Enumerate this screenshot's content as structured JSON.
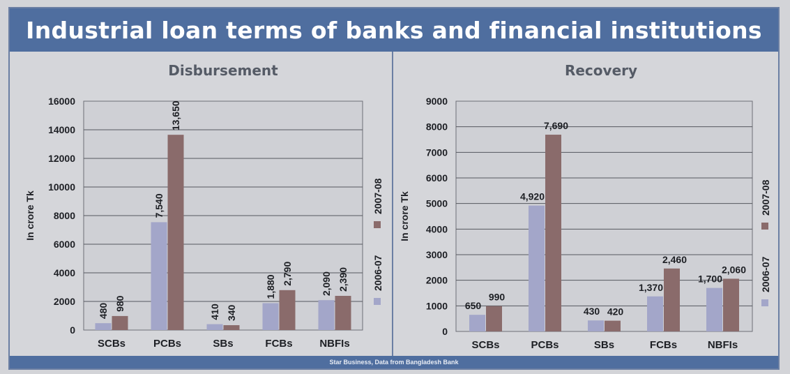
{
  "title": "Industrial loan terms of banks and financial institutions",
  "footer": "Star Business, Data from Bangladesh Bank",
  "colors": {
    "s2006": "#a3a6c9",
    "s2007": "#8a6b6b",
    "title_bg": "#4f6e9f"
  },
  "chart_data": [
    {
      "type": "bar",
      "title": "Disbursement",
      "ylabel": "In crore Tk",
      "categories": [
        "SCBs",
        "PCBs",
        "SBs",
        "FCBs",
        "NBFIs"
      ],
      "ylim": [
        0,
        16000
      ],
      "yticks": [
        "0",
        "2000",
        "4000",
        "6000",
        "8000",
        "10000",
        "12000",
        "14000",
        "16000"
      ],
      "label_orientation": "vertical",
      "legend_position": "right",
      "grid": true,
      "series": [
        {
          "name": "2006-07",
          "values": [
            480,
            7540,
            410,
            1880,
            2090
          ],
          "labels": [
            "480",
            "7,540",
            "410",
            "1,880",
            "2,090"
          ]
        },
        {
          "name": "2007-08",
          "values": [
            980,
            13650,
            340,
            2790,
            2390
          ],
          "labels": [
            "980",
            "13,650",
            "340",
            "2,790",
            "2,390"
          ]
        }
      ]
    },
    {
      "type": "bar",
      "title": "Recovery",
      "ylabel": "In crore Tk",
      "categories": [
        "SCBs",
        "PCBs",
        "SBs",
        "FCBs",
        "NBFIs"
      ],
      "ylim": [
        0,
        9000
      ],
      "yticks": [
        "0",
        "1000",
        "2000",
        "3000",
        "4000",
        "5000",
        "6000",
        "7000",
        "8000",
        "9000"
      ],
      "label_orientation": "horizontal",
      "legend_position": "right",
      "grid": true,
      "series": [
        {
          "name": "2006-07",
          "values": [
            650,
            4920,
            430,
            1370,
            1700
          ],
          "labels": [
            "650",
            "4,920",
            "430",
            "1,370",
            "1,700"
          ]
        },
        {
          "name": "2007-08",
          "values": [
            990,
            7690,
            420,
            2460,
            2060
          ],
          "labels": [
            "990",
            "7,690",
            "420",
            "2,460",
            "2,060"
          ]
        }
      ]
    }
  ]
}
